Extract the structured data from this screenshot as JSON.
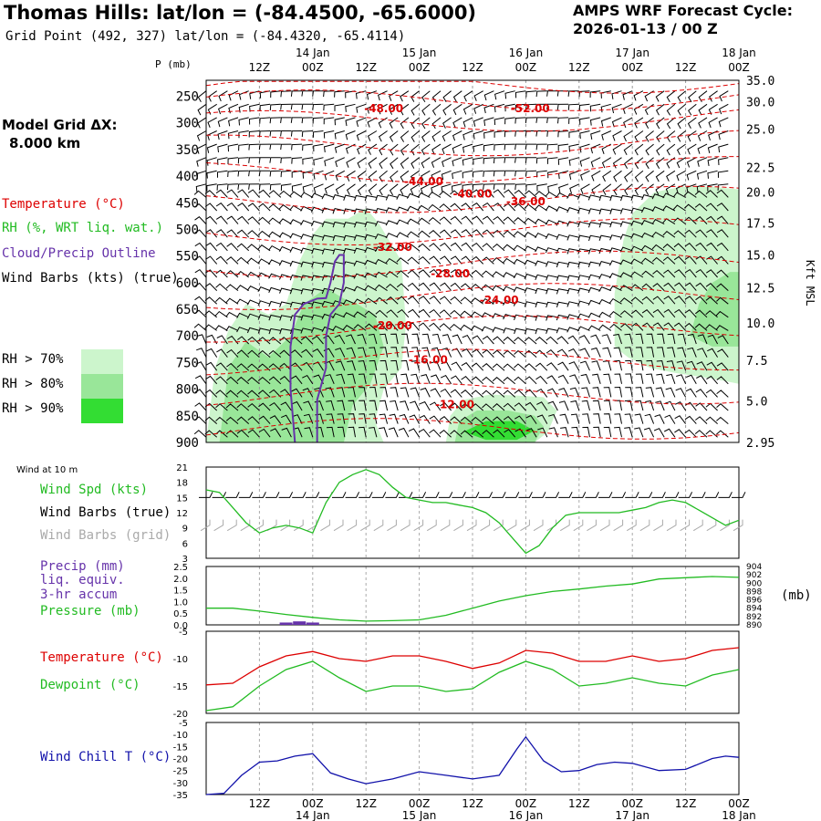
{
  "header": {
    "title": "Thomas Hills:  lat/lon = (-84.4500, -65.6000)",
    "subtitle": "Grid Point (492, 327) lat/lon = (-84.4320, -65.4114)",
    "cycle_label": "AMPS WRF Forecast Cycle:",
    "cycle_value": "2026-01-13 / 00  Z",
    "grid_label": "Model Grid ΔX:",
    "grid_value": "8.000 km"
  },
  "legend": {
    "temperature": "Temperature (°C)",
    "rh": "RH (%, WRT liq. wat.)",
    "cloud": "Cloud/Precip Outline",
    "wind": "Wind Barbs (kts) (true)",
    "rh_levels": [
      {
        "label": "RH > 70%",
        "color": "#ccf5cc"
      },
      {
        "label": "RH > 80%",
        "color": "#99e699"
      },
      {
        "label": "RH > 90%",
        "color": "#33dd33"
      }
    ]
  },
  "colors": {
    "temp": "#dd0000",
    "rh": "#22bb22",
    "cloud": "#6633aa",
    "wind": "#000000",
    "wind_grid": "#aaaaaa",
    "precip": "#6633aa",
    "dew": "#22bb22",
    "chill": "#1111aa"
  },
  "chart_data": [
    {
      "type": "heatmap",
      "name": "cross-section",
      "p_axis_label": "P (mb)",
      "p_ticks": [
        250,
        300,
        350,
        400,
        450,
        500,
        550,
        600,
        650,
        700,
        750,
        800,
        850,
        900
      ],
      "ylim_p": [
        900,
        220
      ],
      "right_label": "Kft MSL",
      "right_ticks": [
        {
          "p": 220,
          "label": "35.0"
        },
        {
          "p": 260,
          "label": "30.0"
        },
        {
          "p": 312,
          "label": "25.0"
        },
        {
          "p": 384,
          "label": "22.5"
        },
        {
          "p": 430,
          "label": "20.0"
        },
        {
          "p": 488,
          "label": "17.5"
        },
        {
          "p": 548,
          "label": "15.0"
        },
        {
          "p": 610,
          "label": "12.5"
        },
        {
          "p": 676,
          "label": "10.0"
        },
        {
          "p": 746,
          "label": "7.5"
        },
        {
          "p": 822,
          "label": "5.0"
        },
        {
          "p": 900,
          "label": "2.95"
        }
      ],
      "x_hours": [
        0,
        120
      ],
      "top_hour_ticks": [
        {
          "h": 12,
          "label": "12Z"
        },
        {
          "h": 24,
          "label": "00Z"
        },
        {
          "h": 36,
          "label": "12Z"
        },
        {
          "h": 48,
          "label": "00Z"
        },
        {
          "h": 60,
          "label": "12Z"
        },
        {
          "h": 72,
          "label": "00Z"
        },
        {
          "h": 84,
          "label": "12Z"
        },
        {
          "h": 96,
          "label": "00Z"
        },
        {
          "h": 108,
          "label": "12Z"
        },
        {
          "h": 120,
          "label": "00Z"
        }
      ],
      "date_ticks": [
        {
          "h": 24,
          "label": "14 Jan"
        },
        {
          "h": 48,
          "label": "15 Jan"
        },
        {
          "h": 72,
          "label": "16 Jan"
        },
        {
          "h": 96,
          "label": "17 Jan"
        },
        {
          "h": 120,
          "label": "18 Jan"
        }
      ],
      "temp_labels": [
        {
          "h": 40,
          "p": 280,
          "label": "-48.00"
        },
        {
          "h": 73,
          "p": 280,
          "label": "-52.00"
        },
        {
          "h": 49,
          "p": 417,
          "label": "-44.00"
        },
        {
          "h": 60,
          "p": 440,
          "label": "-40.00"
        },
        {
          "h": 72,
          "p": 455,
          "label": "-36.00"
        },
        {
          "h": 42,
          "p": 540,
          "label": "-32.00"
        },
        {
          "h": 55,
          "p": 590,
          "label": "-28.00"
        },
        {
          "h": 66,
          "p": 640,
          "label": "-24.00"
        },
        {
          "h": 42,
          "p": 688,
          "label": "-20.00"
        },
        {
          "h": 50,
          "p": 752,
          "label": "-16.00"
        },
        {
          "h": 56,
          "p": 836,
          "label": "-12.00"
        }
      ],
      "rh_regions": [
        {
          "level": 70,
          "pts": [
            [
              0,
              900
            ],
            [
              2,
              760
            ],
            [
              5,
              690
            ],
            [
              9,
              640
            ],
            [
              14,
              660
            ],
            [
              18,
              640
            ],
            [
              21,
              560
            ],
            [
              24,
              510
            ],
            [
              27,
              480
            ],
            [
              32,
              480
            ],
            [
              36,
              460
            ],
            [
              39,
              490
            ],
            [
              44,
              560
            ],
            [
              45,
              680
            ],
            [
              44,
              760
            ],
            [
              40,
              800
            ],
            [
              38,
              860
            ],
            [
              40,
              900
            ]
          ]
        },
        {
          "level": 80,
          "pts": [
            [
              3,
              900
            ],
            [
              5,
              760
            ],
            [
              9,
              710
            ],
            [
              14,
              740
            ],
            [
              19,
              700
            ],
            [
              22,
              640
            ],
            [
              27,
              610
            ],
            [
              31,
              630
            ],
            [
              34,
              640
            ],
            [
              38,
              660
            ],
            [
              40,
              720
            ],
            [
              37,
              790
            ],
            [
              33,
              830
            ],
            [
              31,
              900
            ]
          ]
        },
        {
          "level": 70,
          "pts": [
            [
              54,
              900
            ],
            [
              55,
              850
            ],
            [
              58,
              820
            ],
            [
              64,
              810
            ],
            [
              70,
              812
            ],
            [
              76,
              815
            ],
            [
              79,
              840
            ],
            [
              77,
              880
            ],
            [
              74,
              900
            ]
          ]
        },
        {
          "level": 80,
          "pts": [
            [
              56,
              900
            ],
            [
              57,
              860
            ],
            [
              61,
              840
            ],
            [
              68,
              840
            ],
            [
              74,
              850
            ],
            [
              76,
              870
            ],
            [
              74,
              900
            ]
          ]
        },
        {
          "level": 90,
          "pts": [
            [
              58,
              880
            ],
            [
              63,
              860
            ],
            [
              70,
              860
            ],
            [
              74,
              878
            ],
            [
              70,
              895
            ],
            [
              63,
              895
            ]
          ]
        },
        {
          "level": 70,
          "pts": [
            [
              92,
              720
            ],
            [
              92,
              620
            ],
            [
              94,
              520
            ],
            [
              96,
              470
            ],
            [
              101,
              430
            ],
            [
              107,
              420
            ],
            [
              114,
              420
            ],
            [
              120,
              425
            ],
            [
              120,
              790
            ],
            [
              114,
              780
            ],
            [
              106,
              770
            ],
            [
              100,
              760
            ],
            [
              95,
              740
            ]
          ]
        },
        {
          "level": 80,
          "pts": [
            [
              109,
              700
            ],
            [
              111,
              640
            ],
            [
              114,
              600
            ],
            [
              118,
              580
            ],
            [
              120,
              580
            ],
            [
              120,
              720
            ],
            [
              114,
              720
            ]
          ]
        }
      ],
      "cloud_outline": [
        [
          20,
          900
        ],
        [
          19,
          800
        ],
        [
          19,
          720
        ],
        [
          20,
          660
        ],
        [
          22,
          640
        ],
        [
          25,
          630
        ],
        [
          27,
          629
        ],
        [
          28,
          600
        ],
        [
          29,
          560
        ],
        [
          30,
          548
        ],
        [
          31,
          548
        ],
        [
          31,
          600
        ],
        [
          30,
          640
        ],
        [
          28,
          660
        ],
        [
          27,
          700
        ],
        [
          27,
          760
        ],
        [
          25,
          820
        ],
        [
          25,
          900
        ]
      ]
    },
    {
      "type": "line",
      "name": "wind",
      "title": "Wind at 10 m",
      "labels": [
        "Wind Spd (kts)",
        "Wind Barbs (true)",
        "Wind Barbs (grid)"
      ],
      "y_ticks": [
        3,
        6,
        9,
        12,
        15,
        18,
        21
      ],
      "ylim": [
        3,
        21
      ],
      "x": [
        0,
        3,
        6,
        9,
        12,
        15,
        18,
        21,
        24,
        27,
        30,
        33,
        36,
        39,
        42,
        45,
        48,
        51,
        54,
        57,
        60,
        63,
        66,
        69,
        72,
        75,
        78,
        81,
        84,
        87,
        90,
        93,
        96,
        99,
        102,
        105,
        108,
        111,
        114,
        117,
        120
      ],
      "values": [
        16.5,
        16.0,
        13.0,
        10.0,
        8.0,
        9.0,
        9.5,
        9.0,
        8.0,
        14.0,
        18.0,
        19.5,
        20.5,
        19.5,
        17.0,
        15.0,
        14.5,
        14.0,
        14.0,
        13.5,
        13.0,
        12.0,
        10.0,
        7.0,
        4.0,
        5.5,
        9.0,
        11.5,
        12.0,
        12.0,
        12.0,
        12.0,
        12.5,
        13.0,
        14.0,
        14.5,
        14.0,
        12.5,
        11.0,
        9.5,
        10.5
      ]
    },
    {
      "type": "line",
      "name": "precip",
      "labels": [
        "Precip (mm)",
        "liq. equiv.",
        "3-hr accum",
        "Pressure (mb)"
      ],
      "y_ticks": [
        "0.0",
        "0.5",
        "1.0",
        "1.5",
        "2.0",
        "2.5"
      ],
      "ylim": [
        0,
        2.5
      ],
      "right_ticks": [
        890,
        892,
        894,
        896,
        898,
        900,
        902,
        904
      ],
      "right_ylim": [
        890,
        904
      ],
      "right_unit": "(mb)",
      "precip_bars": [
        {
          "h": 18,
          "v": 0.1
        },
        {
          "h": 21,
          "v": 0.15
        },
        {
          "h": 24,
          "v": 0.1
        }
      ],
      "x": [
        0,
        6,
        12,
        18,
        24,
        30,
        36,
        42,
        48,
        54,
        60,
        66,
        72,
        78,
        84,
        90,
        96,
        102,
        108,
        114,
        120
      ],
      "pressure": [
        894.0,
        894.0,
        893.3,
        892.5,
        891.8,
        891.2,
        890.9,
        891.0,
        891.2,
        892.3,
        894.0,
        895.7,
        897.0,
        898.0,
        898.6,
        899.3,
        899.8,
        901.0,
        901.3,
        901.6,
        901.4
      ]
    },
    {
      "type": "line",
      "name": "temperature",
      "labels": [
        "Temperature (°C)",
        "Dewpoint (°C)"
      ],
      "y_ticks": [
        -20,
        -15,
        -10,
        -5
      ],
      "ylim": [
        -20,
        -5
      ],
      "x": [
        0,
        6,
        12,
        18,
        24,
        30,
        36,
        42,
        48,
        54,
        60,
        66,
        72,
        78,
        84,
        90,
        96,
        102,
        108,
        114,
        120
      ],
      "temperature": [
        -14.8,
        -14.5,
        -11.5,
        -9.5,
        -8.7,
        -10.0,
        -10.5,
        -9.5,
        -9.5,
        -10.5,
        -11.8,
        -10.8,
        -8.5,
        -9.0,
        -10.5,
        -10.5,
        -9.5,
        -10.5,
        -10.0,
        -8.5,
        -8.0
      ],
      "dewpoint": [
        -19.5,
        -18.8,
        -15.0,
        -12.0,
        -10.5,
        -13.5,
        -16.0,
        -15.0,
        -15.0,
        -16.0,
        -15.5,
        -12.5,
        -10.5,
        -12.0,
        -15.0,
        -14.5,
        -13.5,
        -14.5,
        -15.0,
        -13.0,
        -12.0
      ]
    },
    {
      "type": "line",
      "name": "wind-chill",
      "labels": [
        "Wind Chill T (°C)"
      ],
      "y_ticks": [
        -35,
        -30,
        -25,
        -20,
        -15,
        -10,
        -5
      ],
      "ylim": [
        -35,
        -5
      ],
      "x": [
        0,
        4,
        8,
        12,
        16,
        20,
        24,
        28,
        32,
        36,
        42,
        48,
        54,
        60,
        66,
        70,
        72,
        76,
        80,
        84,
        88,
        92,
        96,
        102,
        108,
        114,
        117,
        120
      ],
      "values": [
        -35.0,
        -34.5,
        -27.0,
        -21.5,
        -21.0,
        -19.0,
        -18.0,
        -26.0,
        -28.5,
        -30.5,
        -28.5,
        -25.5,
        -27.0,
        -28.5,
        -27.0,
        -16.0,
        -11.0,
        -21.0,
        -25.5,
        -25.0,
        -22.5,
        -21.5,
        -22.0,
        -25.0,
        -24.5,
        -20.0,
        -19.0,
        -19.5
      ]
    }
  ],
  "bottom_axis": {
    "hour_ticks": [
      {
        "h": 12,
        "label": "12Z"
      },
      {
        "h": 24,
        "label": "00Z"
      },
      {
        "h": 36,
        "label": "12Z"
      },
      {
        "h": 48,
        "label": "00Z"
      },
      {
        "h": 60,
        "label": "12Z"
      },
      {
        "h": 72,
        "label": "00Z"
      },
      {
        "h": 84,
        "label": "12Z"
      },
      {
        "h": 96,
        "label": "00Z"
      },
      {
        "h": 108,
        "label": "12Z"
      },
      {
        "h": 120,
        "label": "00Z"
      }
    ],
    "date_ticks": [
      {
        "h": 24,
        "label": "14 Jan"
      },
      {
        "h": 48,
        "label": "15 Jan"
      },
      {
        "h": 72,
        "label": "16 Jan"
      },
      {
        "h": 96,
        "label": "17 Jan"
      },
      {
        "h": 120,
        "label": "18 Jan"
      }
    ]
  }
}
